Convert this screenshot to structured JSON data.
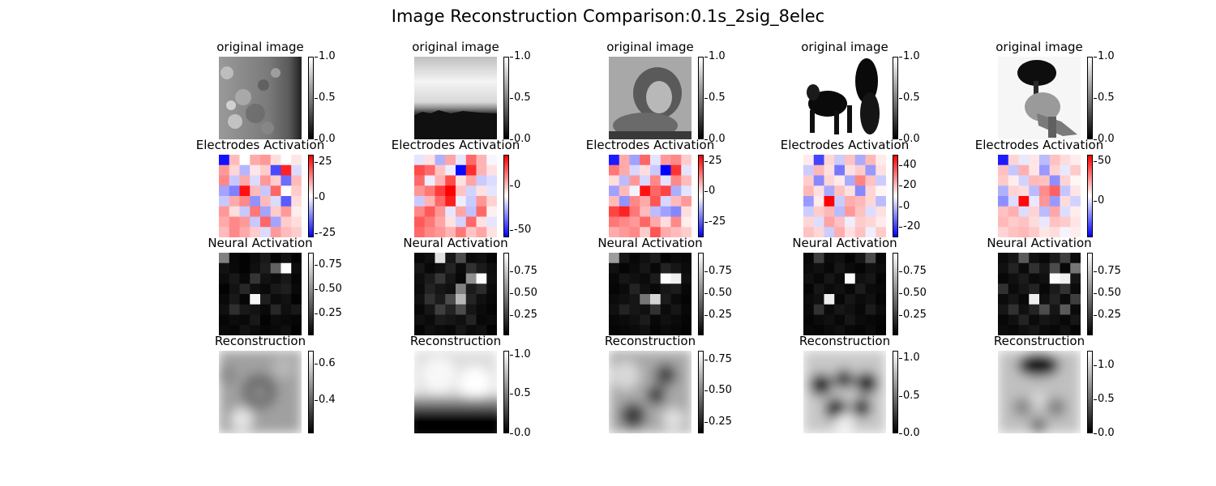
{
  "chart_data": {
    "type": "heatmap",
    "title": "Image Reconstruction Comparison:0.1s_2sig_8elec",
    "row_titles": [
      "original image",
      "Electrodes Activation",
      "Neural Activation",
      "Reconstruction"
    ],
    "rows": [
      {
        "name": "original",
        "colormap": "gray",
        "colorbar_ticks": [
          [
            "1.0",
            "0.5",
            "0.0"
          ],
          [
            "1.0",
            "0.5",
            "0.0"
          ],
          [
            "1.0",
            "0.5",
            "0.0"
          ],
          [
            "1.0",
            "0.5",
            "0.0"
          ],
          [
            "1.0",
            "0.5",
            "0.0"
          ]
        ],
        "colorbar_range": [
          [
            0,
            1
          ],
          [
            0,
            1
          ],
          [
            0,
            1
          ],
          [
            0,
            1
          ],
          [
            0,
            1
          ]
        ]
      },
      {
        "name": "electrodes",
        "colormap": "bwr",
        "colorbar_ticks": [
          [
            "25",
            "0",
            "-25"
          ],
          [
            "0",
            "-50"
          ],
          [
            "25",
            "0",
            "-25"
          ],
          [
            "40",
            "20",
            "0",
            "-20"
          ],
          [
            "50",
            "0"
          ]
        ],
        "colorbar_range": [
          [
            -28,
            30
          ],
          [
            -58,
            34
          ],
          [
            -38,
            30
          ],
          [
            -30,
            50
          ],
          [
            -45,
            58
          ]
        ],
        "grids": [
          [
            [
              -26,
              8,
              0,
              10,
              12,
              4,
              0,
              3
            ],
            [
              12,
              5,
              -8,
              3,
              6,
              -20,
              26,
              -4
            ],
            [
              14,
              -6,
              10,
              -4,
              12,
              6,
              -16,
              8
            ],
            [
              -10,
              -14,
              28,
              8,
              -6,
              18,
              0,
              6
            ],
            [
              -6,
              10,
              14,
              -12,
              8,
              -4,
              -18,
              4
            ],
            [
              12,
              4,
              -6,
              16,
              -10,
              6,
              12,
              2
            ],
            [
              10,
              14,
              12,
              -6,
              18,
              -10,
              6,
              4
            ],
            [
              8,
              14,
              10,
              6,
              -4,
              12,
              8,
              6
            ]
          ],
          [
            [
              -6,
              4,
              -18,
              12,
              -6,
              20,
              10,
              -2
            ],
            [
              24,
              20,
              8,
              -4,
              -56,
              28,
              10,
              4
            ],
            [
              20,
              -4,
              10,
              24,
              4,
              12,
              -12,
              -8
            ],
            [
              14,
              18,
              26,
              34,
              8,
              -10,
              4,
              -6
            ],
            [
              -12,
              10,
              20,
              30,
              -4,
              -12,
              14,
              6
            ],
            [
              16,
              22,
              14,
              -6,
              12,
              -14,
              20,
              2
            ],
            [
              22,
              18,
              12,
              4,
              -10,
              20,
              4,
              -6
            ],
            [
              20,
              16,
              14,
              10,
              18,
              8,
              12,
              4
            ]
          ],
          [
            [
              -34,
              10,
              -14,
              18,
              -4,
              12,
              14,
              6
            ],
            [
              16,
              10,
              -6,
              4,
              -8,
              -38,
              24,
              -4
            ],
            [
              4,
              -10,
              12,
              -6,
              14,
              -4,
              14,
              8
            ],
            [
              -14,
              8,
              -2,
              28,
              18,
              22,
              -12,
              -4
            ],
            [
              8,
              -16,
              14,
              10,
              20,
              -6,
              8,
              12
            ],
            [
              22,
              26,
              16,
              8,
              -10,
              -14,
              -18,
              4
            ],
            [
              16,
              14,
              12,
              18,
              10,
              4,
              14,
              2
            ],
            [
              10,
              12,
              14,
              6,
              20,
              10,
              8,
              6
            ]
          ],
          [
            [
              4,
              -22,
              8,
              -6,
              12,
              -10,
              14,
              4
            ],
            [
              -6,
              14,
              6,
              -16,
              6,
              10,
              -12,
              6
            ],
            [
              10,
              -14,
              8,
              4,
              -10,
              24,
              12,
              -6
            ],
            [
              14,
              6,
              -10,
              12,
              6,
              -14,
              8,
              2
            ],
            [
              -12,
              4,
              52,
              -6,
              16,
              14,
              8,
              -8
            ],
            [
              -6,
              10,
              14,
              -8,
              20,
              12,
              -4,
              6
            ],
            [
              8,
              -4,
              18,
              12,
              -2,
              10,
              8,
              4
            ],
            [
              12,
              8,
              -6,
              16,
              6,
              12,
              -2,
              10
            ]
          ],
          [
            [
              -40,
              10,
              -4,
              6,
              -12,
              14,
              8,
              4
            ],
            [
              14,
              -10,
              18,
              6,
              -18,
              10,
              -4,
              12
            ],
            [
              12,
              4,
              -8,
              16,
              14,
              -20,
              10,
              2
            ],
            [
              -14,
              10,
              8,
              -12,
              26,
              36,
              -10,
              6
            ],
            [
              -20,
              -6,
              56,
              -4,
              24,
              -18,
              8,
              -8
            ],
            [
              14,
              18,
              -6,
              10,
              -12,
              20,
              -6,
              4
            ],
            [
              16,
              12,
              14,
              8,
              -4,
              14,
              12,
              6
            ],
            [
              10,
              14,
              16,
              12,
              6,
              8,
              -2,
              4
            ]
          ]
        ]
      },
      {
        "name": "neural",
        "colormap": "gray",
        "colorbar_ticks": [
          [
            "0.75",
            "0.50",
            "0.25"
          ],
          [
            "0.75",
            "0.50",
            "0.25"
          ],
          [
            "0.75",
            "0.50",
            "0.25"
          ],
          [
            "0.75",
            "0.50",
            "0.25"
          ],
          [
            "0.75",
            "0.50",
            "0.25"
          ]
        ],
        "colorbar_range": [
          [
            0.02,
            0.88
          ],
          [
            0.02,
            0.96
          ],
          [
            0.02,
            0.96
          ],
          [
            0.02,
            0.96
          ],
          [
            0.02,
            0.96
          ]
        ],
        "grids": [
          [
            [
              0.45,
              0.05,
              0.03,
              0.06,
              0.1,
              0.04,
              0.08,
              0.03
            ],
            [
              0.08,
              0.05,
              0.03,
              0.07,
              0.12,
              0.35,
              0.88,
              0.06
            ],
            [
              0.06,
              0.1,
              0.05,
              0.2,
              0.08,
              0.06,
              0.1,
              0.04
            ],
            [
              0.03,
              0.08,
              0.15,
              0.07,
              0.05,
              0.1,
              0.12,
              0.05
            ],
            [
              0.05,
              0.1,
              0.04,
              0.85,
              0.12,
              0.06,
              0.08,
              0.03
            ],
            [
              0.07,
              0.18,
              0.1,
              0.08,
              0.05,
              0.15,
              0.07,
              0.1
            ],
            [
              0.04,
              0.06,
              0.05,
              0.1,
              0.03,
              0.06,
              0.05,
              0.04
            ],
            [
              0.05,
              0.04,
              0.08,
              0.06,
              0.04,
              0.05,
              0.07,
              0.03
            ]
          ],
          [
            [
              0.05,
              0.08,
              0.85,
              0.1,
              0.3,
              0.06,
              0.08,
              0.04
            ],
            [
              0.1,
              0.05,
              0.08,
              0.15,
              0.06,
              0.2,
              0.12,
              0.07
            ],
            [
              0.07,
              0.12,
              0.22,
              0.1,
              0.05,
              0.55,
              0.95,
              0.08
            ],
            [
              0.06,
              0.15,
              0.1,
              0.08,
              0.5,
              0.12,
              0.18,
              0.06
            ],
            [
              0.08,
              0.2,
              0.12,
              0.3,
              0.7,
              0.15,
              0.08,
              0.05
            ],
            [
              0.05,
              0.1,
              0.25,
              0.15,
              0.3,
              0.1,
              0.06,
              0.04
            ],
            [
              0.08,
              0.06,
              0.12,
              0.1,
              0.08,
              0.15,
              0.05,
              0.06
            ],
            [
              0.04,
              0.08,
              0.06,
              0.05,
              0.1,
              0.06,
              0.08,
              0.03
            ]
          ],
          [
            [
              0.6,
              0.1,
              0.05,
              0.08,
              0.12,
              0.04,
              0.06,
              0.05
            ],
            [
              0.08,
              0.04,
              0.06,
              0.1,
              0.05,
              0.15,
              0.1,
              0.06
            ],
            [
              0.05,
              0.1,
              0.08,
              0.06,
              0.12,
              0.95,
              0.9,
              0.08
            ],
            [
              0.04,
              0.06,
              0.15,
              0.08,
              0.05,
              0.1,
              0.12,
              0.05
            ],
            [
              0.06,
              0.08,
              0.1,
              0.45,
              0.8,
              0.12,
              0.06,
              0.04
            ],
            [
              0.08,
              0.15,
              0.1,
              0.08,
              0.2,
              0.06,
              0.1,
              0.05
            ],
            [
              0.05,
              0.06,
              0.08,
              0.12,
              0.05,
              0.08,
              0.06,
              0.04
            ],
            [
              0.04,
              0.05,
              0.06,
              0.08,
              0.04,
              0.06,
              0.05,
              0.03
            ]
          ],
          [
            [
              0.05,
              0.25,
              0.06,
              0.08,
              0.04,
              0.1,
              0.3,
              0.05
            ],
            [
              0.06,
              0.08,
              0.05,
              0.1,
              0.06,
              0.04,
              0.08,
              0.06
            ],
            [
              0.08,
              0.05,
              0.1,
              0.06,
              0.95,
              0.08,
              0.1,
              0.04
            ],
            [
              0.04,
              0.1,
              0.06,
              0.08,
              0.05,
              0.12,
              0.06,
              0.05
            ],
            [
              0.06,
              0.08,
              0.9,
              0.05,
              0.1,
              0.06,
              0.08,
              0.04
            ],
            [
              0.05,
              0.2,
              0.06,
              0.1,
              0.08,
              0.05,
              0.12,
              0.06
            ],
            [
              0.04,
              0.06,
              0.08,
              0.05,
              0.1,
              0.06,
              0.05,
              0.04
            ],
            [
              0.05,
              0.04,
              0.06,
              0.08,
              0.05,
              0.04,
              0.06,
              0.03
            ]
          ],
          [
            [
              0.06,
              0.1,
              0.35,
              0.08,
              0.05,
              0.12,
              0.25,
              0.06
            ],
            [
              0.08,
              0.15,
              0.06,
              0.2,
              0.1,
              0.3,
              0.05,
              0.45
            ],
            [
              0.05,
              0.08,
              0.12,
              0.06,
              0.08,
              0.95,
              0.9,
              0.1
            ],
            [
              0.2,
              0.06,
              0.1,
              0.15,
              0.05,
              0.12,
              0.2,
              0.06
            ],
            [
              0.06,
              0.1,
              0.05,
              0.9,
              0.08,
              0.15,
              0.06,
              0.25
            ],
            [
              0.1,
              0.2,
              0.08,
              0.15,
              0.3,
              0.1,
              0.35,
              0.06
            ],
            [
              0.05,
              0.08,
              0.15,
              0.06,
              0.1,
              0.08,
              0.05,
              0.1
            ],
            [
              0.06,
              0.05,
              0.08,
              0.1,
              0.06,
              0.05,
              0.08,
              0.04
            ]
          ]
        ]
      },
      {
        "name": "reconstruction",
        "colormap": "gray",
        "colorbar_ticks": [
          [
            "0.6",
            "0.4"
          ],
          [
            "1.0",
            "0.5",
            "0.0"
          ],
          [
            "0.75",
            "0.50",
            "0.25"
          ],
          [
            "1.0",
            "0.5",
            "0.0"
          ],
          [
            "1.0",
            "0.5",
            "0.0"
          ]
        ],
        "colorbar_range": [
          [
            0.22,
            0.67
          ],
          [
            0,
            1.05
          ],
          [
            0.16,
            0.82
          ],
          [
            0,
            1.1
          ],
          [
            0,
            1.22
          ]
        ]
      }
    ]
  }
}
